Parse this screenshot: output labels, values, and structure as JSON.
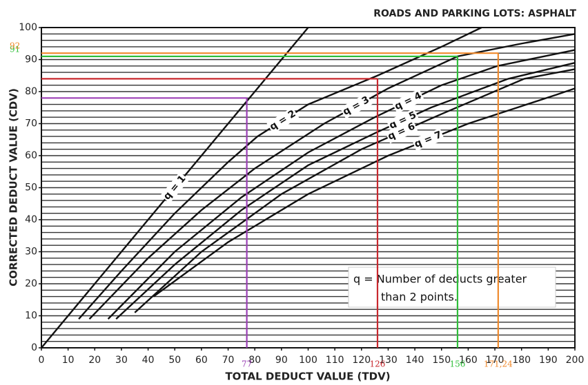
{
  "chart_data": {
    "type": "line",
    "title": "ROADS AND PARKING LOTS: ASPHALT",
    "xlabel": "TOTAL DEDUCT VALUE (TDV)",
    "ylabel": "CORRECTED DEDUCT VALUE (CDV)",
    "xlim": [
      0,
      200
    ],
    "ylim": [
      0,
      100
    ],
    "xticks": [
      0,
      10,
      20,
      30,
      40,
      50,
      60,
      70,
      80,
      90,
      100,
      110,
      120,
      130,
      140,
      150,
      160,
      170,
      180,
      190,
      200
    ],
    "yticks": [
      0,
      10,
      20,
      30,
      40,
      50,
      60,
      70,
      80,
      90,
      100
    ],
    "grid_lines": [
      2,
      4,
      6,
      8,
      10,
      12,
      14,
      16,
      18,
      20,
      22,
      24,
      26,
      28,
      30,
      32,
      34,
      36,
      38,
      40,
      42,
      44,
      46,
      48,
      50,
      52,
      54,
      56,
      58,
      60,
      62,
      64,
      66,
      68,
      70,
      72,
      74,
      76,
      78,
      80,
      82,
      84,
      86,
      88,
      90,
      92,
      94,
      96,
      98
    ],
    "series": [
      {
        "name": "q = 1",
        "color": "#111111",
        "x": [
          0,
          100
        ],
        "values": [
          0,
          100
        ]
      },
      {
        "name": "q = 2",
        "color": "#111111",
        "x": [
          14,
          30,
          50,
          70,
          81,
          100,
          126,
          150,
          165
        ],
        "values": [
          9,
          24,
          42,
          58,
          66,
          76,
          85,
          94,
          100
        ]
      },
      {
        "name": "q = 3",
        "color": "#111111",
        "x": [
          18,
          40,
          60,
          80,
          106,
          130,
          156,
          180,
          200
        ],
        "values": [
          9,
          28,
          43,
          56,
          70,
          81,
          91,
          95,
          98
        ]
      },
      {
        "name": "q = 4",
        "color": "#111111",
        "x": [
          25,
          50,
          75,
          100,
          125,
          150,
          171,
          200
        ],
        "values": [
          9,
          30,
          47,
          61,
          72,
          82,
          88,
          93
        ]
      },
      {
        "name": "q = 5",
        "color": "#111111",
        "x": [
          28,
          50,
          75,
          100,
          125,
          146,
          175,
          200
        ],
        "values": [
          9,
          26,
          43,
          57,
          67,
          75,
          84,
          89
        ]
      },
      {
        "name": "q = 6",
        "color": "#111111",
        "x": [
          35,
          60,
          90,
          120,
          150,
          181,
          200
        ],
        "values": [
          11,
          30,
          48,
          62,
          73,
          84,
          87
        ]
      },
      {
        "name": "q = 7",
        "color": "#111111",
        "x": [
          42,
          70,
          100,
          130,
          160,
          193,
          200
        ],
        "values": [
          16,
          33,
          48,
          60,
          70,
          79,
          81
        ]
      }
    ],
    "reference_lines": [
      {
        "x": 77,
        "y": 78,
        "color": "#9b3fb5",
        "x_label": "77",
        "y_label": null
      },
      {
        "x": 126,
        "y": 84,
        "color": "#c8282e",
        "x_label": "126",
        "y_label": null
      },
      {
        "x": 156,
        "y": 91,
        "color": "#2fbf3a",
        "x_label": "156",
        "y_label": "91"
      },
      {
        "x": 171.24,
        "y": 92,
        "color": "#f08a2c",
        "x_label": "171,24",
        "y_label": "92"
      }
    ],
    "note": [
      "q = Number of deducts greater",
      "than 2 points."
    ]
  }
}
